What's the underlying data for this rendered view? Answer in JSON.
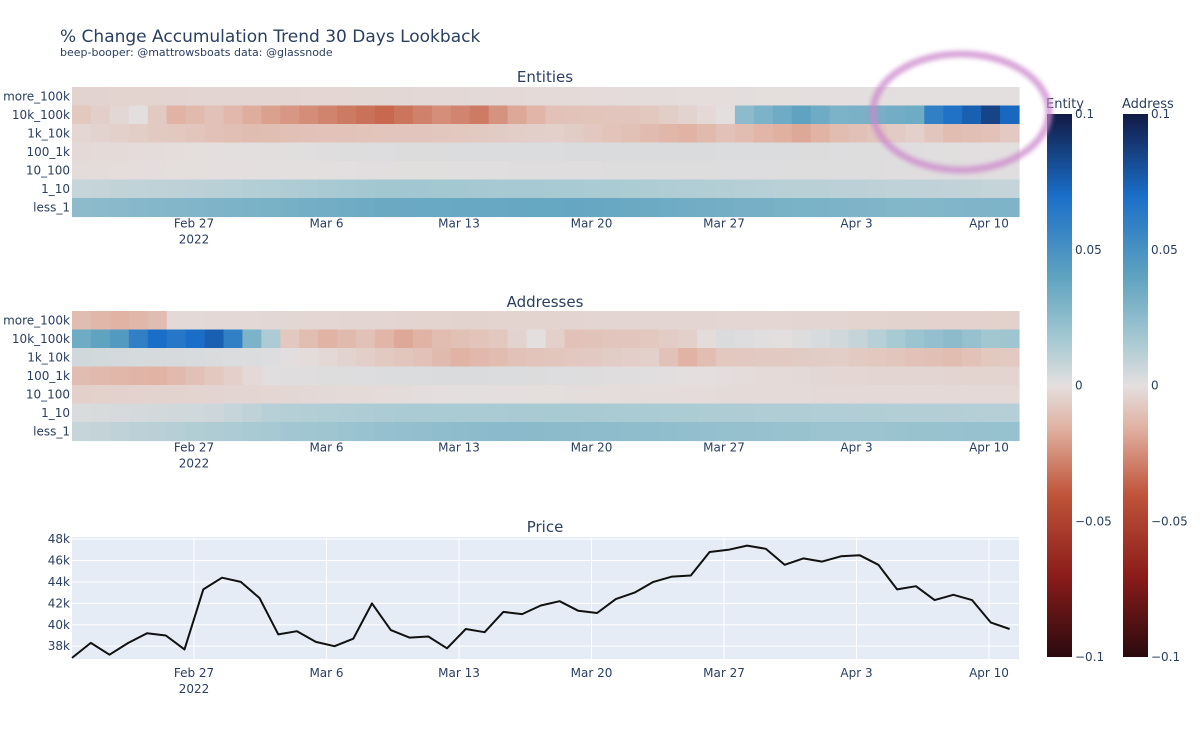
{
  "chart_data": {
    "title": "% Change Accumulation Trend 30 Days Lookback",
    "subtitle": "beep-booper: @mattrowsboats data: @glassnode",
    "x_ticks": [
      "Feb 27",
      "Mar 6",
      "Mar 13",
      "Mar 20",
      "Mar 27",
      "Apr 3",
      "Apr 10"
    ],
    "x_year_label": "2022",
    "cohorts": [
      "more_100k",
      "10k_100k",
      "1k_10k",
      "100_1k",
      "10_100",
      "1_10",
      "less_1"
    ],
    "heatmaps": [
      {
        "name": "entities",
        "type": "heatmap",
        "title": "Entities",
        "start_day": 0,
        "days": 50,
        "rows": {
          "more_100k": [
            [
              0,
              -0.004
            ],
            [
              14,
              -0.003
            ],
            [
              30,
              -0.001
            ],
            [
              42,
              0.0
            ]
          ],
          "10k_100k": [
            [
              0,
              -0.008
            ],
            [
              3,
              0.0
            ],
            [
              5,
              -0.015
            ],
            [
              7,
              -0.01
            ],
            [
              10,
              -0.02
            ],
            [
              13,
              -0.028
            ],
            [
              16,
              -0.035
            ],
            [
              19,
              -0.025
            ],
            [
              21,
              -0.03
            ],
            [
              23,
              -0.018
            ],
            [
              25,
              -0.01
            ],
            [
              30,
              -0.008
            ],
            [
              34,
              0.0
            ],
            [
              35,
              0.025
            ],
            [
              38,
              0.04
            ],
            [
              40,
              0.03
            ],
            [
              44,
              0.035
            ],
            [
              45,
              0.06
            ],
            [
              47,
              0.075
            ],
            [
              48,
              0.085
            ],
            [
              49,
              0.072
            ],
            [
              50,
              0.08
            ]
          ],
          "1k_10k": [
            [
              0,
              -0.003
            ],
            [
              9,
              -0.012
            ],
            [
              12,
              -0.01
            ],
            [
              20,
              -0.008
            ],
            [
              25,
              -0.005
            ],
            [
              32,
              -0.015
            ],
            [
              34,
              -0.01
            ],
            [
              38,
              -0.018
            ],
            [
              40,
              -0.012
            ],
            [
              44,
              -0.005
            ],
            [
              46,
              -0.012
            ],
            [
              48,
              -0.01
            ],
            [
              50,
              -0.005
            ]
          ],
          "100_1k": [
            [
              0,
              -0.002
            ],
            [
              16,
              0.002
            ],
            [
              30,
              0.003
            ],
            [
              40,
              0.002
            ],
            [
              50,
              0.0
            ]
          ],
          "10_100": [
            [
              0,
              -0.001
            ],
            [
              20,
              0.001
            ],
            [
              35,
              0.002
            ],
            [
              50,
              0.001
            ]
          ],
          "1_10": [
            [
              0,
              0.008
            ],
            [
              8,
              0.012
            ],
            [
              16,
              0.018
            ],
            [
              26,
              0.016
            ],
            [
              36,
              0.012
            ],
            [
              44,
              0.01
            ],
            [
              50,
              0.008
            ]
          ],
          "less_1": [
            [
              0,
              0.025
            ],
            [
              8,
              0.03
            ],
            [
              16,
              0.036
            ],
            [
              26,
              0.038
            ],
            [
              36,
              0.032
            ],
            [
              44,
              0.028
            ],
            [
              50,
              0.03
            ]
          ]
        }
      },
      {
        "name": "addresses",
        "type": "heatmap",
        "title": "Addresses",
        "start_day": 0,
        "days": 50,
        "rows": {
          "more_100k": [
            [
              0,
              -0.012
            ],
            [
              2,
              -0.015
            ],
            [
              4,
              -0.012
            ],
            [
              5,
              -0.002
            ],
            [
              20,
              -0.004
            ],
            [
              36,
              -0.003
            ],
            [
              50,
              -0.005
            ]
          ],
          "10k_100k": [
            [
              0,
              0.035
            ],
            [
              2,
              0.045
            ],
            [
              3,
              0.06
            ],
            [
              4,
              0.07
            ],
            [
              5,
              0.065
            ],
            [
              7,
              0.075
            ],
            [
              8,
              0.06
            ],
            [
              9,
              0.03
            ],
            [
              10,
              0.015
            ],
            [
              11,
              -0.008
            ],
            [
              13,
              -0.015
            ],
            [
              15,
              -0.01
            ],
            [
              17,
              -0.018
            ],
            [
              19,
              -0.012
            ],
            [
              22,
              -0.008
            ],
            [
              24,
              0.0
            ],
            [
              26,
              -0.01
            ],
            [
              30,
              -0.008
            ],
            [
              32,
              -0.005
            ],
            [
              34,
              0.003
            ],
            [
              37,
              0.0
            ],
            [
              40,
              0.005
            ],
            [
              42,
              0.012
            ],
            [
              44,
              0.02
            ],
            [
              46,
              0.025
            ],
            [
              48,
              0.018
            ],
            [
              50,
              0.02
            ]
          ],
          "1k_10k": [
            [
              0,
              0.005
            ],
            [
              10,
              0.002
            ],
            [
              18,
              -0.01
            ],
            [
              20,
              -0.015
            ],
            [
              23,
              -0.01
            ],
            [
              30,
              -0.005
            ],
            [
              32,
              -0.015
            ],
            [
              34,
              -0.008
            ],
            [
              40,
              -0.006
            ],
            [
              46,
              -0.012
            ],
            [
              48,
              -0.008
            ],
            [
              50,
              -0.006
            ]
          ],
          "100_1k": [
            [
              0,
              -0.012
            ],
            [
              4,
              -0.015
            ],
            [
              7,
              -0.008
            ],
            [
              10,
              0.001
            ],
            [
              20,
              0.003
            ],
            [
              30,
              0.001
            ],
            [
              40,
              -0.003
            ],
            [
              50,
              -0.004
            ]
          ],
          "10_100": [
            [
              0,
              -0.005
            ],
            [
              10,
              -0.003
            ],
            [
              20,
              0.0
            ],
            [
              30,
              -0.001
            ],
            [
              40,
              -0.002
            ],
            [
              50,
              -0.002
            ]
          ],
          "1_10": [
            [
              0,
              0.003
            ],
            [
              7,
              0.006
            ],
            [
              10,
              0.012
            ],
            [
              16,
              0.015
            ],
            [
              26,
              0.016
            ],
            [
              36,
              0.014
            ],
            [
              44,
              0.013
            ],
            [
              50,
              0.012
            ]
          ],
          "less_1": [
            [
              0,
              0.008
            ],
            [
              8,
              0.015
            ],
            [
              16,
              0.022
            ],
            [
              22,
              0.026
            ],
            [
              30,
              0.024
            ],
            [
              40,
              0.02
            ],
            [
              50,
              0.022
            ]
          ]
        }
      }
    ],
    "price": {
      "type": "line",
      "title": "Price",
      "y_ticks": [
        "48k",
        "46k",
        "44k",
        "42k",
        "40k",
        "38k"
      ],
      "ylim": [
        36800,
        48200
      ],
      "days": 50.5,
      "points": [
        [
          0,
          36900
        ],
        [
          1,
          38300
        ],
        [
          2,
          37200
        ],
        [
          3,
          38300
        ],
        [
          4,
          39200
        ],
        [
          5,
          39000
        ],
        [
          6,
          37700
        ],
        [
          7,
          43300
        ],
        [
          8,
          44400
        ],
        [
          9,
          44000
        ],
        [
          10,
          42500
        ],
        [
          11,
          39100
        ],
        [
          12,
          39400
        ],
        [
          13,
          38400
        ],
        [
          14,
          38000
        ],
        [
          15,
          38700
        ],
        [
          16,
          42000
        ],
        [
          17,
          39500
        ],
        [
          18,
          38800
        ],
        [
          19,
          38900
        ],
        [
          20,
          37800
        ],
        [
          21,
          39600
        ],
        [
          22,
          39300
        ],
        [
          23,
          41200
        ],
        [
          24,
          41000
        ],
        [
          25,
          41800
        ],
        [
          26,
          42200
        ],
        [
          27,
          41300
        ],
        [
          28,
          41100
        ],
        [
          29,
          42400
        ],
        [
          30,
          43000
        ],
        [
          31,
          44000
        ],
        [
          32,
          44500
        ],
        [
          33,
          44600
        ],
        [
          34,
          46800
        ],
        [
          35,
          47000
        ],
        [
          36,
          47400
        ],
        [
          37,
          47100
        ],
        [
          38,
          45600
        ],
        [
          39,
          46200
        ],
        [
          40,
          45900
        ],
        [
          41,
          46400
        ],
        [
          42,
          46500
        ],
        [
          43,
          45600
        ],
        [
          44,
          43300
        ],
        [
          45,
          43600
        ],
        [
          46,
          42300
        ],
        [
          47,
          42800
        ],
        [
          48,
          42300
        ],
        [
          49,
          40200
        ],
        [
          50,
          39600
        ]
      ]
    },
    "colorbars": [
      {
        "title": "Entity",
        "ticks": [
          "0.1",
          "0.05",
          "0",
          "−0.05",
          "−0.1"
        ]
      },
      {
        "title": "Address",
        "ticks": [
          "0.1",
          "0.05",
          "0",
          "−0.05",
          "−0.1"
        ]
      }
    ],
    "colorscale": {
      "range": [
        -0.1,
        0.1
      ],
      "stops": [
        [
          0.0,
          "#2a0a0e"
        ],
        [
          0.15,
          "#8b1c1a"
        ],
        [
          0.3,
          "#c0553a"
        ],
        [
          0.42,
          "#e0b0a0"
        ],
        [
          0.5,
          "#e4dfdf"
        ],
        [
          0.58,
          "#a8cad3"
        ],
        [
          0.7,
          "#5fa3c0"
        ],
        [
          0.85,
          "#1a6ec8"
        ],
        [
          1.0,
          "#121a45"
        ]
      ]
    },
    "annotation": {
      "shape": "ellipse",
      "color": "#cc88cc"
    }
  }
}
